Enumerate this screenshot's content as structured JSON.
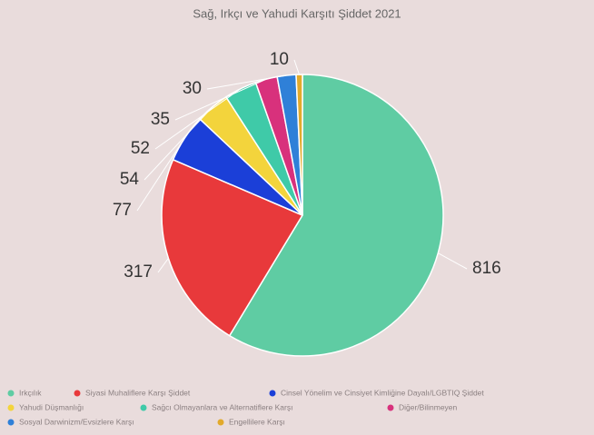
{
  "chart_data": {
    "type": "pie",
    "title": "Sağ, Irkçı ve Yahudi Karşıtı Şiddet 2021",
    "categories": [
      "Irkçılık",
      "Siyasi Muhaliflere Karşı Şiddet",
      "Cinsel Yönelim ve Cinsiyet Kimliğine Dayalı/LGBTIQ Şiddet",
      "Yahudi Düşmanlığı",
      "Sağcı Olmayanlara ve Alternatiflere Karşı",
      "Diğer/Bilinmeyen",
      "Sosyal Darwinizm/Evsizlere Karşı",
      "Engellilere Karşı"
    ],
    "values": [
      816,
      317,
      77,
      54,
      52,
      35,
      30,
      10
    ],
    "colors": [
      "#5fcca3",
      "#e8393b",
      "#1b3fd8",
      "#f3d43c",
      "#3fcaa8",
      "#d8317c",
      "#2f80d8",
      "#e2aa2c"
    ],
    "legend": "bottom"
  }
}
